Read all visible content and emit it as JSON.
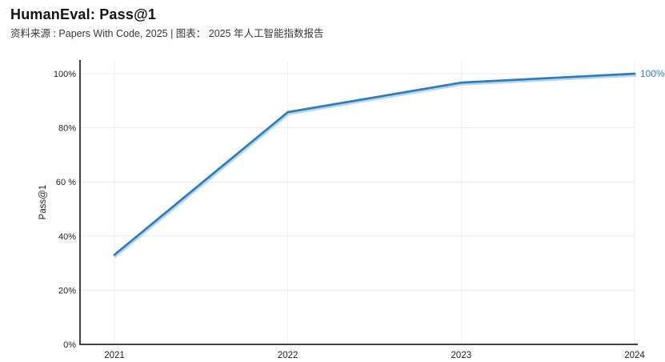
{
  "header": {
    "title": "HumanEval: Pass@1",
    "source_line": "资料来源 : Papers With Code, 2025 | 图表： 2025 年人工智能指数报告"
  },
  "chart_data": {
    "type": "line",
    "title": "HumanEval: Pass@1",
    "source_line": "资料来源 : Papers With Code, 2025 | 图表： 2025 年人工智能指数报告",
    "x": [
      2021,
      2022,
      2023,
      2024
    ],
    "categories": [
      "2021",
      "2022",
      "2023",
      "2024"
    ],
    "series": [
      {
        "name": "HumanEval Pass@1",
        "values": [
          33.1,
          85.8,
          96.7,
          100
        ]
      }
    ],
    "y_ticks": [
      0,
      20,
      40,
      60,
      80,
      100
    ],
    "y_tick_labels": [
      "0%",
      "20%",
      "40%",
      "60 %",
      "80%",
      "100%"
    ],
    "x_tick_labels": [
      "2021",
      "2022",
      "2023",
      "2024"
    ],
    "ylabel": "Pass@1",
    "xlabel": "",
    "ylim": [
      0,
      100
    ],
    "end_label": "100%",
    "grid": "both",
    "legend": "none",
    "colors": {
      "line": "#2d7dbb",
      "line_halo": "#abcfeb",
      "end_label": "#2f84c4",
      "axis": "#444444",
      "grid_h": "#ececec",
      "grid_v": "#f2f2f2",
      "tick_text": "#1f1f1f"
    }
  }
}
